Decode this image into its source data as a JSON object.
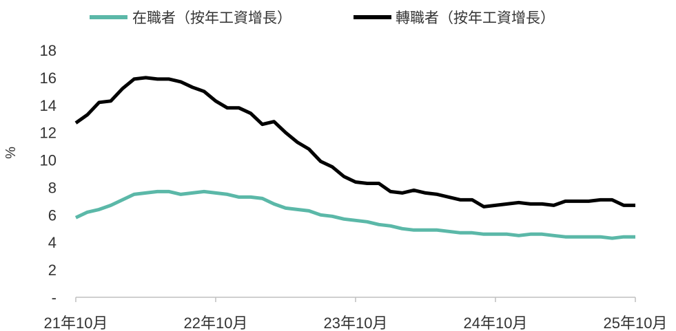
{
  "chart_data": {
    "type": "line",
    "ylabel": "%",
    "ylim": [
      0,
      18
    ],
    "yticks": [
      {
        "value": 0,
        "label": "-"
      },
      {
        "value": 2,
        "label": "2"
      },
      {
        "value": 4,
        "label": "4"
      },
      {
        "value": 6,
        "label": "6"
      },
      {
        "value": 8,
        "label": "8"
      },
      {
        "value": 10,
        "label": "10"
      },
      {
        "value": 12,
        "label": "12"
      },
      {
        "value": 14,
        "label": "14"
      },
      {
        "value": 16,
        "label": "16"
      },
      {
        "value": 18,
        "label": "18"
      }
    ],
    "x": [
      "2021-10",
      "2021-11",
      "2021-12",
      "2022-01",
      "2022-02",
      "2022-03",
      "2022-04",
      "2022-05",
      "2022-06",
      "2022-07",
      "2022-08",
      "2022-09",
      "2022-10",
      "2022-11",
      "2022-12",
      "2023-01",
      "2023-02",
      "2023-03",
      "2023-04",
      "2023-05",
      "2023-06",
      "2023-07",
      "2023-08",
      "2023-09",
      "2023-10",
      "2023-11",
      "2023-12",
      "2024-01",
      "2024-02",
      "2024-03",
      "2024-04",
      "2024-05",
      "2024-06",
      "2024-07",
      "2024-08",
      "2024-09",
      "2024-10",
      "2024-11",
      "2024-12",
      "2025-01",
      "2025-02",
      "2025-03",
      "2025-04",
      "2025-05",
      "2025-06",
      "2025-07",
      "2025-08",
      "2025-09",
      "2025-10"
    ],
    "xticks": [
      {
        "index": 0,
        "label": "21年10月"
      },
      {
        "index": 12,
        "label": "22年10月"
      },
      {
        "index": 24,
        "label": "23年10月"
      },
      {
        "index": 36,
        "label": "24年10月"
      },
      {
        "index": 48,
        "label": "25年10月"
      }
    ],
    "series": [
      {
        "name": "在職者（按年工資增長）",
        "color": "#5bb8a8",
        "values": [
          5.8,
          6.2,
          6.4,
          6.7,
          7.1,
          7.5,
          7.6,
          7.7,
          7.7,
          7.5,
          7.6,
          7.7,
          7.6,
          7.5,
          7.3,
          7.3,
          7.2,
          6.8,
          6.5,
          6.4,
          6.3,
          6.0,
          5.9,
          5.7,
          5.6,
          5.5,
          5.3,
          5.2,
          5.0,
          4.9,
          4.9,
          4.9,
          4.8,
          4.7,
          4.7,
          4.6,
          4.6,
          4.6,
          4.5,
          4.6,
          4.6,
          4.5,
          4.4,
          4.4,
          4.4,
          4.4,
          4.3,
          4.4,
          4.4
        ]
      },
      {
        "name": "轉職者（按年工資增長）",
        "color": "#000000",
        "values": [
          12.7,
          13.3,
          14.2,
          14.3,
          15.2,
          15.9,
          16.0,
          15.9,
          15.9,
          15.7,
          15.3,
          15.0,
          14.3,
          13.8,
          13.8,
          13.4,
          12.6,
          12.8,
          12.0,
          11.3,
          10.8,
          9.9,
          9.5,
          8.8,
          8.4,
          8.3,
          8.3,
          7.7,
          7.6,
          7.8,
          7.6,
          7.5,
          7.3,
          7.1,
          7.1,
          6.6,
          6.7,
          6.8,
          6.9,
          6.8,
          6.8,
          6.7,
          7.0,
          7.0,
          7.0,
          7.1,
          7.1,
          6.7,
          6.7
        ]
      }
    ],
    "legend": {
      "position": "top"
    }
  }
}
